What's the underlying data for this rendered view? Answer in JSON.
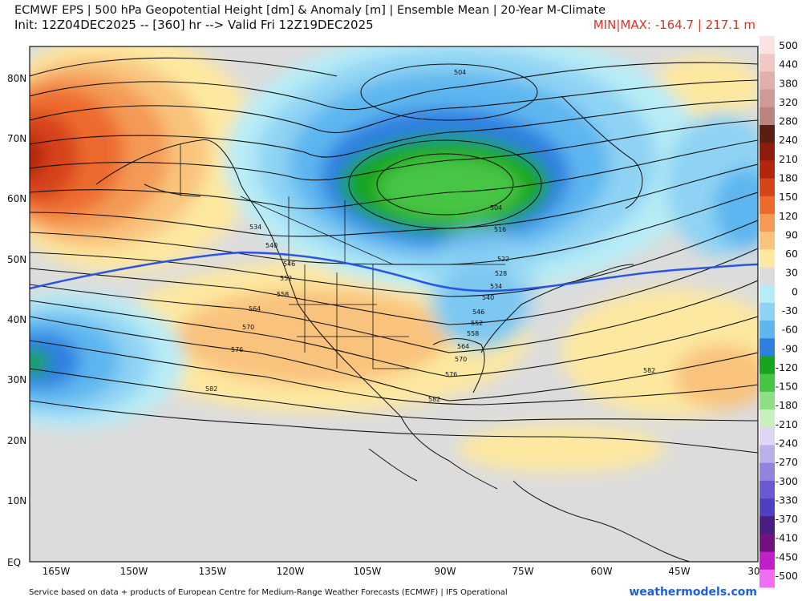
{
  "header": {
    "title_line1": "ECMWF EPS | 500 hPa Geopotential Height [dm] & Anomaly [m] | Ensemble Mean | 20-Year M-Climate",
    "title_line2": "Init: 12Z04DEC2025 -- [360] hr --> Valid Fri 12Z19DEC2025",
    "minmax": "MIN|MAX: -164.7 | 217.1 m"
  },
  "latitude_labels": [
    "80N",
    "70N",
    "60N",
    "50N",
    "40N",
    "30N",
    "20N",
    "10N",
    "EQ"
  ],
  "longitude_labels": [
    "165W",
    "150W",
    "135W",
    "120W",
    "105W",
    "90W",
    "75W",
    "60W",
    "45W",
    "30"
  ],
  "contour_labels": [
    "504",
    "534",
    "540",
    "546",
    "552",
    "558",
    "564",
    "570",
    "576",
    "582",
    "504",
    "516",
    "522",
    "528",
    "534",
    "540",
    "546",
    "552",
    "558",
    "564",
    "570",
    "576",
    "582",
    "582"
  ],
  "colorbar": {
    "labels": [
      "500",
      "440",
      "380",
      "320",
      "280",
      "240",
      "210",
      "180",
      "150",
      "120",
      "90",
      "60",
      "30",
      "0",
      "-30",
      "-60",
      "-90",
      "-120",
      "-150",
      "-180",
      "-210",
      "-240",
      "-270",
      "-300",
      "-330",
      "-370",
      "-410",
      "-450",
      "-500"
    ],
    "colors": [
      "#fbe3e3",
      "#f2c8c5",
      "#e2b0ac",
      "#cf9a96",
      "#bb8480",
      "#5a1e12",
      "#8c1c0c",
      "#b3260d",
      "#d6421a",
      "#ed6a2d",
      "#f49a55",
      "#f9c37d",
      "#fde8a0",
      "#dcdcdc",
      "#b7ecf6",
      "#8fd3f4",
      "#5db6ef",
      "#2e7fe0",
      "#17a51f",
      "#46c544",
      "#8ede86",
      "#c7efc0",
      "#ded6f3",
      "#bcb0ea",
      "#9383df",
      "#6b58d3",
      "#4e3fc3",
      "#4a1e80",
      "#72127c",
      "#c21ec9",
      "#f16ef4"
    ]
  },
  "footer": {
    "credit": "Service based on data + products of European Centre for Medium-Range Weather Forecasts (ECMWF) | IFS Operational",
    "brand": "weathermodels.com"
  }
}
